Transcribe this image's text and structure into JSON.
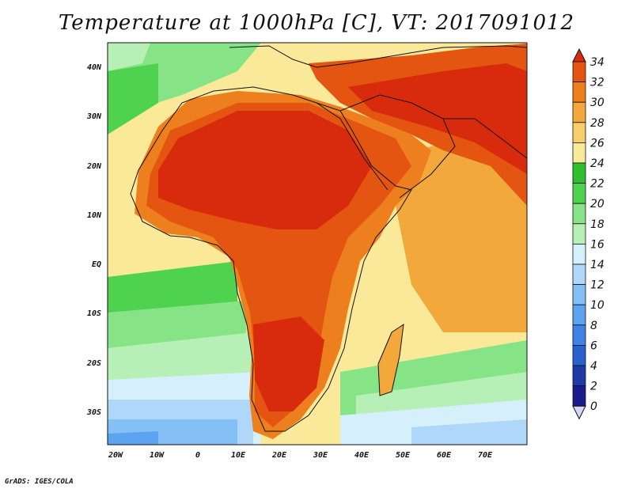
{
  "title": "Temperature at 1000hPa [C], VT: 2017091012",
  "credit": "GrADS: IGES/COLA",
  "map": {
    "lat_labels": [
      "40N",
      "30N",
      "20N",
      "10N",
      "EQ",
      "10S",
      "20S",
      "30S"
    ],
    "lon_labels": [
      "20W",
      "10W",
      "0",
      "10E",
      "20E",
      "30E",
      "40E",
      "50E",
      "60E",
      "70E"
    ],
    "lon_range": [
      -22,
      80
    ],
    "lat_range": [
      -36,
      45
    ]
  },
  "colorbar": {
    "labels": [
      "34",
      "32",
      "30",
      "28",
      "26",
      "24",
      "22",
      "20",
      "18",
      "16",
      "14",
      "12",
      "10",
      "8",
      "6",
      "4",
      "2",
      "0"
    ],
    "colors": [
      "#1a1a8c",
      "#1e3aa6",
      "#2a61cc",
      "#3f83e6",
      "#5ea3f0",
      "#84bff5",
      "#aed7fa",
      "#d5f0fb",
      "#b6f0b6",
      "#86e486",
      "#4fd24f",
      "#2fbf2f",
      "#fbe99a",
      "#f8cd6a",
      "#f3a83c",
      "#ee7f1e",
      "#e45511",
      "#d82a0c"
    ]
  }
}
